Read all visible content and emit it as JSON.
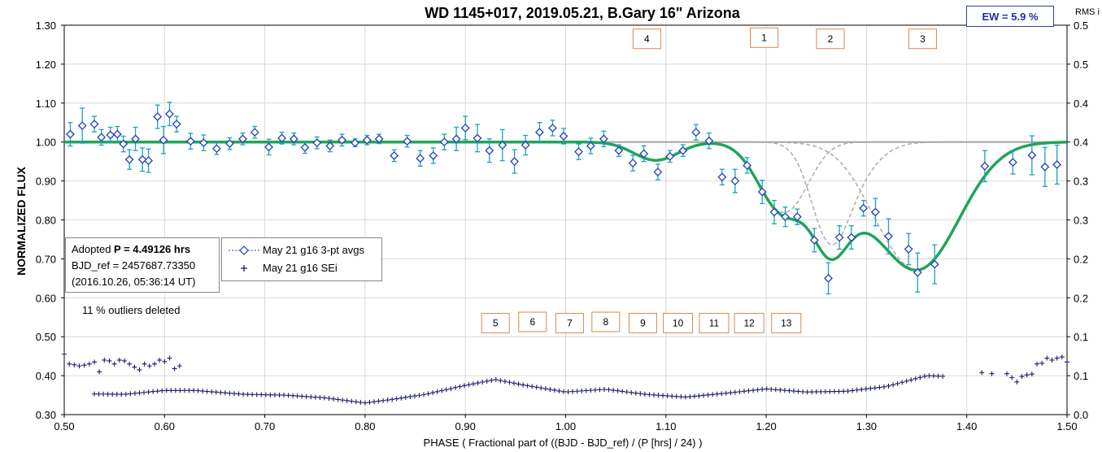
{
  "chart_data": {
    "type": "scatter",
    "title": "WD 1145+017, 2019.05.21, B.Gary 16\" Arizona",
    "xlabel": "PHASE ( Fractional part of ((BJD - BJD_ref) / (P [hrs] / 24) )",
    "ylabel": "NORMALIZED FLUX",
    "y2label": "RMS i",
    "xlim": [
      0.5,
      1.5
    ],
    "ylim": [
      0.3,
      1.3
    ],
    "y2lim": [
      0.0,
      0.5
    ],
    "xticks": [
      0.5,
      0.6,
      0.7,
      0.8,
      0.9,
      1.0,
      1.1,
      1.2,
      1.3,
      1.4,
      1.5
    ],
    "xtick_labels": [
      "0.50",
      "0.60",
      "0.70",
      "0.80",
      "0.90",
      "1.00",
      "1.10",
      "1.20",
      "1.30",
      "1.40",
      "1.50"
    ],
    "yticks": [
      0.3,
      0.4,
      0.5,
      0.6,
      0.7,
      0.8,
      0.9,
      1.0,
      1.1,
      1.2,
      1.3
    ],
    "ytick_labels": [
      "0.30",
      "0.40",
      "0.50",
      "0.60",
      "0.70",
      "0.80",
      "0.90",
      "1.00",
      "1.10",
      "1.20",
      "1.30"
    ],
    "y2ticks": [
      0.0,
      0.05,
      0.1,
      0.15,
      0.2,
      0.25,
      0.3,
      0.35,
      0.4,
      0.45,
      0.5
    ],
    "y2tick_labels": [
      "0.0",
      "0.1",
      "0.1",
      "0.2",
      "0.2",
      "0.3",
      "0.3",
      "0.4",
      "0.4",
      "0.5",
      "0.5"
    ],
    "grid": true,
    "colors": {
      "avgs": "#1f3fbf",
      "errbar": "#1aa3b8",
      "sei": "#1c1c6e",
      "model": "#22a35a",
      "components": "#b0b0b0",
      "baseline": "#a6a6a6",
      "eventbox": "#d9874f"
    },
    "series": [
      {
        "name": "May 21 g16 3-pt avgs",
        "marker": "diamond",
        "points": [
          [
            0.506,
            1.02,
            0.03
          ],
          [
            0.518,
            1.042,
            0.045
          ],
          [
            0.53,
            1.046,
            0.02
          ],
          [
            0.537,
            1.012,
            0.02
          ],
          [
            0.546,
            1.018,
            0.02
          ],
          [
            0.553,
            1.02,
            0.02
          ],
          [
            0.559,
            0.995,
            0.02
          ],
          [
            0.565,
            0.955,
            0.025
          ],
          [
            0.571,
            1.008,
            0.03
          ],
          [
            0.578,
            0.955,
            0.03
          ],
          [
            0.584,
            0.952,
            0.03
          ],
          [
            0.593,
            1.065,
            0.03
          ],
          [
            0.599,
            1.005,
            0.035
          ],
          [
            0.605,
            1.072,
            0.03
          ],
          [
            0.612,
            1.046,
            0.02
          ],
          [
            0.626,
            1.002,
            0.02
          ],
          [
            0.639,
            0.998,
            0.02
          ],
          [
            0.652,
            0.983,
            0.015
          ],
          [
            0.665,
            0.996,
            0.015
          ],
          [
            0.678,
            1.008,
            0.015
          ],
          [
            0.69,
            1.025,
            0.015
          ],
          [
            0.704,
            0.987,
            0.02
          ],
          [
            0.717,
            1.01,
            0.015
          ],
          [
            0.729,
            1.008,
            0.015
          ],
          [
            0.74,
            0.986,
            0.015
          ],
          [
            0.752,
            0.998,
            0.015
          ],
          [
            0.765,
            0.99,
            0.015
          ],
          [
            0.777,
            1.005,
            0.015
          ],
          [
            0.79,
            0.998,
            0.01
          ],
          [
            0.802,
            1.005,
            0.012
          ],
          [
            0.814,
            1.008,
            0.012
          ],
          [
            0.829,
            0.965,
            0.015
          ],
          [
            0.842,
            1.002,
            0.015
          ],
          [
            0.855,
            0.958,
            0.02
          ],
          [
            0.868,
            0.965,
            0.02
          ],
          [
            0.879,
            1.0,
            0.02
          ],
          [
            0.891,
            1.008,
            0.03
          ],
          [
            0.9,
            1.036,
            0.03
          ],
          [
            0.912,
            1.01,
            0.035
          ],
          [
            0.924,
            0.978,
            0.03
          ],
          [
            0.937,
            0.992,
            0.04
          ],
          [
            0.949,
            0.95,
            0.03
          ],
          [
            0.96,
            0.992,
            0.025
          ],
          [
            0.974,
            1.025,
            0.025
          ],
          [
            0.987,
            1.036,
            0.02
          ],
          [
            0.998,
            1.015,
            0.02
          ],
          [
            1.013,
            0.975,
            0.02
          ],
          [
            1.025,
            0.99,
            0.02
          ],
          [
            1.038,
            1.008,
            0.02
          ],
          [
            1.053,
            0.978,
            0.015
          ],
          [
            1.067,
            0.946,
            0.02
          ],
          [
            1.078,
            0.97,
            0.02
          ],
          [
            1.092,
            0.923,
            0.02
          ],
          [
            1.104,
            0.963,
            0.015
          ],
          [
            1.117,
            0.978,
            0.015
          ],
          [
            1.13,
            1.025,
            0.02
          ],
          [
            1.143,
            1.003,
            0.02
          ],
          [
            1.156,
            0.91,
            0.02
          ],
          [
            1.169,
            0.9,
            0.03
          ],
          [
            1.181,
            0.94,
            0.02
          ],
          [
            1.196,
            0.872,
            0.03
          ],
          [
            1.208,
            0.82,
            0.03
          ],
          [
            1.219,
            0.808,
            0.025
          ],
          [
            1.231,
            0.808,
            0.02
          ],
          [
            1.248,
            0.748,
            0.03
          ],
          [
            1.262,
            0.65,
            0.04
          ],
          [
            1.273,
            0.755,
            0.03
          ],
          [
            1.285,
            0.755,
            0.03
          ],
          [
            1.297,
            0.83,
            0.02
          ],
          [
            1.309,
            0.82,
            0.035
          ],
          [
            1.322,
            0.758,
            0.045
          ],
          [
            1.342,
            0.725,
            0.04
          ],
          [
            1.351,
            0.665,
            0.05
          ],
          [
            1.368,
            0.686,
            0.05
          ],
          [
            1.418,
            0.938,
            0.04
          ],
          [
            1.446,
            0.948,
            0.03
          ],
          [
            1.465,
            0.966,
            0.05
          ],
          [
            1.478,
            0.936,
            0.05
          ],
          [
            1.49,
            0.942,
            0.05
          ]
        ]
      },
      {
        "name": "May 21 g16 SEi",
        "marker": "plus",
        "points": [
          [
            0.5,
            0.455
          ],
          [
            0.505,
            0.43
          ],
          [
            0.51,
            0.428
          ],
          [
            0.515,
            0.425
          ],
          [
            0.52,
            0.427
          ],
          [
            0.525,
            0.43
          ],
          [
            0.53,
            0.435
          ],
          [
            0.535,
            0.41
          ],
          [
            0.54,
            0.44
          ],
          [
            0.545,
            0.438
          ],
          [
            0.55,
            0.43
          ],
          [
            0.555,
            0.44
          ],
          [
            0.56,
            0.438
          ],
          [
            0.565,
            0.43
          ],
          [
            0.57,
            0.422
          ],
          [
            0.575,
            0.415
          ],
          [
            0.58,
            0.43
          ],
          [
            0.585,
            0.425
          ],
          [
            0.59,
            0.43
          ],
          [
            0.595,
            0.44
          ],
          [
            0.6,
            0.436
          ],
          [
            0.605,
            0.445
          ],
          [
            0.61,
            0.418
          ],
          [
            0.615,
            0.425
          ],
          [
            1.415,
            0.408
          ],
          [
            1.425,
            0.405
          ],
          [
            1.44,
            0.405
          ],
          [
            1.445,
            0.395
          ],
          [
            1.45,
            0.384
          ],
          [
            1.455,
            0.398
          ],
          [
            1.46,
            0.402
          ],
          [
            1.465,
            0.404
          ],
          [
            1.47,
            0.43
          ],
          [
            1.475,
            0.432
          ],
          [
            1.48,
            0.445
          ],
          [
            1.485,
            0.44
          ],
          [
            1.49,
            0.445
          ],
          [
            1.495,
            0.448
          ],
          [
            1.5,
            0.435
          ]
        ]
      }
    ],
    "sei_continuous": {
      "x_start": 0.53,
      "x_end": 1.38,
      "description_points": [
        [
          0.53,
          0.353
        ],
        [
          0.56,
          0.352
        ],
        [
          0.6,
          0.362
        ],
        [
          0.63,
          0.362
        ],
        [
          0.68,
          0.352
        ],
        [
          0.72,
          0.35
        ],
        [
          0.76,
          0.343
        ],
        [
          0.8,
          0.33
        ],
        [
          0.83,
          0.34
        ],
        [
          0.86,
          0.352
        ],
        [
          0.9,
          0.375
        ],
        [
          0.93,
          0.39
        ],
        [
          0.96,
          0.375
        ],
        [
          1.0,
          0.358
        ],
        [
          1.04,
          0.365
        ],
        [
          1.08,
          0.352
        ],
        [
          1.12,
          0.345
        ],
        [
          1.16,
          0.355
        ],
        [
          1.2,
          0.366
        ],
        [
          1.24,
          0.358
        ],
        [
          1.28,
          0.36
        ],
        [
          1.32,
          0.372
        ],
        [
          1.36,
          0.4
        ],
        [
          1.38,
          0.398
        ]
      ]
    },
    "model": {
      "name": "",
      "components": [
        {
          "label": "4",
          "center": 1.09,
          "depth": 0.047,
          "width": 0.022
        },
        {
          "label": "1",
          "center": 1.228,
          "depth": 0.09,
          "width": 0.02
        },
        {
          "label": "1",
          "center": 1.209,
          "depth": 0.12,
          "width": 0.022
        },
        {
          "label": "2",
          "center": 1.263,
          "depth": 0.21,
          "width": 0.018
        },
        {
          "label": "2",
          "center": 1.283,
          "depth": 0.09,
          "width": 0.025
        },
        {
          "label": "3",
          "center": 1.355,
          "depth": 0.3,
          "width": 0.04
        },
        {
          "label": "3",
          "center": 1.325,
          "depth": 0.06,
          "width": 0.03
        }
      ]
    },
    "event_labels_top": [
      {
        "label": "4",
        "x": 1.081,
        "y": 1.265
      },
      {
        "label": "1",
        "x": 1.198,
        "y": 1.268
      },
      {
        "label": "2",
        "x": 1.264,
        "y": 1.265
      },
      {
        "label": "3",
        "x": 1.356,
        "y": 1.265
      }
    ],
    "event_labels_bottom": [
      {
        "label": "5",
        "x": 0.93,
        "y": 0.535
      },
      {
        "label": "6",
        "x": 0.967,
        "y": 0.538
      },
      {
        "label": "7",
        "x": 1.004,
        "y": 0.535
      },
      {
        "label": "8",
        "x": 1.04,
        "y": 0.538
      },
      {
        "label": "9",
        "x": 1.077,
        "y": 0.535
      },
      {
        "label": "10",
        "x": 1.112,
        "y": 0.535
      },
      {
        "label": "11",
        "x": 1.148,
        "y": 0.535
      },
      {
        "label": "12",
        "x": 1.183,
        "y": 0.535
      },
      {
        "label": "13",
        "x": 1.22,
        "y": 0.535
      }
    ]
  },
  "info_box": {
    "line1_prefix": "Adopted ",
    "line1_bold": "P = 4.49126 hrs",
    "line2": "BJD_ref = 2457687.73350",
    "line3": "(2016.10.26, 05:36:14 UT)"
  },
  "legend": {
    "avgs_label": "May 21 g16 3-pt avgs",
    "sei_label": "May 21 g16 SEi"
  },
  "outliers_note": "11 % outliers deleted",
  "ew_box": "EW =  5.9 %"
}
